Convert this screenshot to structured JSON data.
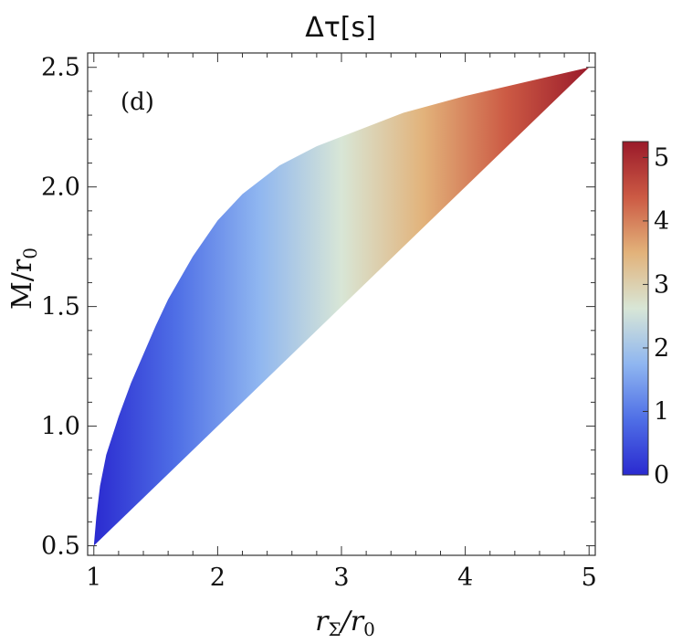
{
  "chart_data": {
    "type": "heatmap",
    "title": "Δτ[s]",
    "xlabel": {
      "main": "r",
      "sub": "Σ",
      "rest": "/r",
      "sub2": "0"
    },
    "ylabel": {
      "main": "M/r",
      "sub": "0"
    },
    "panel_label": "(d)",
    "xlim": [
      0.95,
      5.05
    ],
    "ylim": [
      0.46,
      2.56
    ],
    "x_ticks": [
      1,
      2,
      3,
      4,
      5
    ],
    "x_tick_labels": [
      "1",
      "2",
      "3",
      "4",
      "5"
    ],
    "y_ticks": [
      0.5,
      1.0,
      1.5,
      2.0,
      2.5
    ],
    "y_tick_labels": [
      "0.5",
      "1.0",
      "1.5",
      "2.0",
      "2.5"
    ],
    "region": {
      "lower_boundary": {
        "description_points": [
          [
            1,
            0.5
          ],
          [
            5,
            2.5
          ]
        ]
      },
      "upper_boundary_points": [
        [
          1,
          0.5
        ],
        [
          1.02,
          0.62
        ],
        [
          1.05,
          0.75
        ],
        [
          1.1,
          0.88
        ],
        [
          1.2,
          1.04
        ],
        [
          1.3,
          1.18
        ],
        [
          1.4,
          1.3
        ],
        [
          1.5,
          1.42
        ],
        [
          1.6,
          1.53
        ],
        [
          1.8,
          1.71
        ],
        [
          2.0,
          1.86
        ],
        [
          2.2,
          1.97
        ],
        [
          2.5,
          2.09
        ],
        [
          2.8,
          2.17
        ],
        [
          3.0,
          2.21
        ],
        [
          3.5,
          2.31
        ],
        [
          4.0,
          2.38
        ],
        [
          4.5,
          2.44
        ],
        [
          5.0,
          2.5
        ]
      ]
    },
    "colorbar": {
      "min": 0,
      "max": 5.25,
      "ticks": [
        0,
        1,
        2,
        3,
        4,
        5
      ],
      "tick_labels": [
        "0",
        "1",
        "2",
        "3",
        "4",
        "5"
      ],
      "colors": [
        "#2a2ad0",
        "#4f6fe6",
        "#8fb6f0",
        "#d8e6d6",
        "#e2b27a",
        "#cc5a44",
        "#9a1a2a"
      ]
    }
  }
}
